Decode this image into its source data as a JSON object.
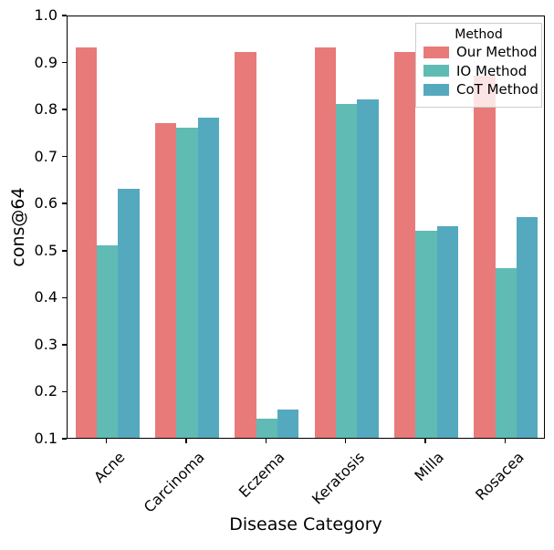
{
  "chart_data": {
    "type": "bar",
    "title": "",
    "xlabel": "Disease Category",
    "ylabel": "cons@64",
    "categories": [
      "Acne",
      "Carcinoma",
      "Eczema",
      "Keratosis",
      "Milla",
      "Rosacea"
    ],
    "series": [
      {
        "name": "Our Method",
        "color": "#e87a7a",
        "values": [
          0.93,
          0.77,
          0.92,
          0.93,
          0.92,
          0.87
        ]
      },
      {
        "name": "IO Method",
        "color": "#5fbbb3",
        "values": [
          0.51,
          0.76,
          0.14,
          0.81,
          0.54,
          0.46
        ]
      },
      {
        "name": "CoT Method",
        "color": "#55a9be",
        "values": [
          0.63,
          0.78,
          0.16,
          0.82,
          0.55,
          0.57
        ]
      }
    ],
    "ylim": [
      0.1,
      1.0
    ],
    "yticks": [
      1.0,
      0.9,
      0.8,
      0.7,
      0.6,
      0.5,
      0.4,
      0.3,
      0.2,
      0.1
    ],
    "legend_title": "Method",
    "legend_position": "upper right",
    "grid": false,
    "bar_group_fraction": 0.8,
    "xtick_rotation_deg": 45
  }
}
